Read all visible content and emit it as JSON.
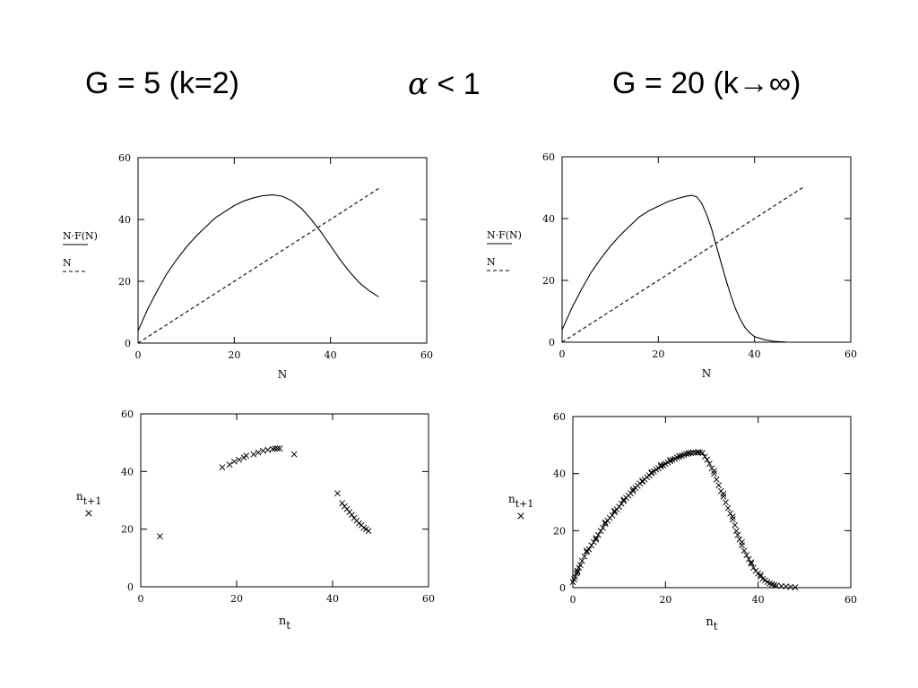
{
  "titles": {
    "left": "G = 5  (k=2)",
    "middle_symbol": "α",
    "middle_rest": " < 1",
    "right": "G = 20 (k→∞)"
  },
  "chart_data": [
    {
      "type": "line",
      "xlabel": "N",
      "ylabel_lines": [
        {
          "text": "N·F(N)",
          "style": "solid"
        },
        {
          "text": "N",
          "style": "dashed"
        }
      ],
      "xlim": [
        0,
        60
      ],
      "ylim": [
        0,
        60
      ],
      "xticks": [
        "0",
        "20",
        "40",
        "60"
      ],
      "yticks": [
        "0",
        "20",
        "40",
        "60"
      ],
      "series": [
        {
          "style": "solid",
          "x": [
            0,
            2,
            4,
            6,
            8,
            10,
            12,
            14,
            16,
            18,
            20,
            22,
            24,
            26,
            28,
            30,
            32,
            34,
            36,
            38,
            40,
            42,
            44,
            46,
            48,
            50
          ],
          "y": [
            4,
            11,
            17,
            22.5,
            27,
            31,
            34.5,
            37.5,
            40.5,
            42.5,
            44.5,
            46,
            47,
            47.7,
            48,
            47.5,
            46,
            43.5,
            40,
            36,
            31.5,
            27,
            23,
            19.5,
            17,
            15
          ]
        },
        {
          "style": "dashed",
          "x": [
            0,
            50
          ],
          "y": [
            0,
            50
          ]
        }
      ]
    },
    {
      "type": "line",
      "xlabel": "N",
      "ylabel_lines": [
        {
          "text": "N·F(N)",
          "style": "solid"
        },
        {
          "text": "N",
          "style": "dashed"
        }
      ],
      "xlim": [
        0,
        60
      ],
      "ylim": [
        0,
        60
      ],
      "xticks": [
        "0",
        "20",
        "40",
        "60"
      ],
      "yticks": [
        "0",
        "20",
        "40",
        "60"
      ],
      "series": [
        {
          "style": "solid",
          "x": [
            0,
            2,
            4,
            6,
            8,
            10,
            12,
            14,
            16,
            18,
            20,
            22,
            24,
            26,
            27,
            28,
            29,
            30,
            31,
            32,
            33,
            34,
            35,
            36,
            37,
            38,
            39,
            40,
            42,
            44,
            46,
            47
          ],
          "y": [
            4,
            11,
            17,
            22.5,
            27,
            31,
            34.5,
            37.5,
            40.5,
            42.5,
            44,
            45.5,
            46.5,
            47.3,
            47.5,
            47,
            45,
            41.5,
            37,
            31.5,
            26,
            20.5,
            15.5,
            11,
            7.5,
            4.8,
            3,
            1.8,
            0.8,
            0.3,
            0.1,
            0
          ]
        },
        {
          "style": "dashed",
          "x": [
            0,
            50
          ],
          "y": [
            0,
            50
          ]
        }
      ]
    },
    {
      "type": "scatter",
      "xlabel": "n",
      "xlabel_sub": "t",
      "ylabel": "n",
      "ylabel_sub": "t+1",
      "legend_marker": "×",
      "xlim": [
        0,
        60
      ],
      "ylim": [
        0,
        60
      ],
      "xticks": [
        "0",
        "20",
        "40",
        "60"
      ],
      "yticks": [
        "0",
        "20",
        "40",
        "60"
      ],
      "points": [
        [
          4,
          17.5
        ],
        [
          17,
          41.5
        ],
        [
          18.5,
          42.5
        ],
        [
          19.5,
          43.5
        ],
        [
          20.5,
          44.2
        ],
        [
          21.5,
          45
        ],
        [
          22,
          45.5
        ],
        [
          23.5,
          46
        ],
        [
          24.5,
          46.7
        ],
        [
          25.5,
          47.2
        ],
        [
          26.5,
          47.6
        ],
        [
          27.5,
          47.9
        ],
        [
          28,
          48
        ],
        [
          28.5,
          48
        ],
        [
          29,
          48
        ],
        [
          32,
          46
        ],
        [
          41,
          32.5
        ],
        [
          42,
          29
        ],
        [
          42.5,
          28
        ],
        [
          43,
          27
        ],
        [
          43.5,
          26
        ],
        [
          44,
          25
        ],
        [
          44.5,
          24
        ],
        [
          45,
          23
        ],
        [
          45.5,
          22
        ],
        [
          46,
          21.5
        ],
        [
          46.5,
          20.5
        ],
        [
          47,
          20
        ],
        [
          47.5,
          19.5
        ]
      ]
    },
    {
      "type": "scatter",
      "xlabel": "n",
      "xlabel_sub": "t",
      "ylabel": "n",
      "ylabel_sub": "t+1",
      "legend_marker": "×",
      "xlim": [
        0,
        60
      ],
      "ylim": [
        0,
        60
      ],
      "xticks": [
        "0",
        "20",
        "40",
        "60"
      ],
      "yticks": [
        "0",
        "20",
        "40",
        "60"
      ],
      "points": [
        [
          0,
          2
        ],
        [
          0.3,
          3
        ],
        [
          0.5,
          4
        ],
        [
          0.8,
          5
        ],
        [
          1,
          6
        ],
        [
          1.3,
          7
        ],
        [
          1.6,
          8
        ],
        [
          2,
          9.5
        ],
        [
          2.5,
          11
        ],
        [
          3,
          12.5
        ],
        [
          3.5,
          13.5
        ],
        [
          4,
          15
        ],
        [
          4.5,
          16
        ],
        [
          5,
          17.5
        ],
        [
          5.5,
          18.5
        ],
        [
          6,
          20
        ],
        [
          6.5,
          21
        ],
        [
          7,
          22.5
        ],
        [
          7.5,
          23.5
        ],
        [
          8,
          24.5
        ],
        [
          8.5,
          25.5
        ],
        [
          9,
          26.5
        ],
        [
          9.5,
          27.5
        ],
        [
          10,
          28.5
        ],
        [
          10.5,
          29.5
        ],
        [
          11,
          30.5
        ],
        [
          11.5,
          31.5
        ],
        [
          12,
          32.3
        ],
        [
          12.5,
          33.2
        ],
        [
          13,
          34
        ],
        [
          13.5,
          35
        ],
        [
          14,
          35.8
        ],
        [
          14.5,
          36.6
        ],
        [
          15,
          37.3
        ],
        [
          15.5,
          38
        ],
        [
          16,
          38.8
        ],
        [
          16.5,
          39.5
        ],
        [
          17,
          40.2
        ],
        [
          17.5,
          40.8
        ],
        [
          18,
          41.5
        ],
        [
          18.5,
          42
        ],
        [
          19,
          42.5
        ],
        [
          19.5,
          43
        ],
        [
          20,
          43.5
        ],
        [
          20.5,
          44
        ],
        [
          21,
          44.5
        ],
        [
          21.5,
          44.9
        ],
        [
          22,
          45.3
        ],
        [
          22.5,
          45.7
        ],
        [
          23,
          46
        ],
        [
          23.5,
          46.3
        ],
        [
          24,
          46.6
        ],
        [
          24.5,
          46.9
        ],
        [
          25,
          47.1
        ],
        [
          25.5,
          47.3
        ],
        [
          26,
          47.4
        ],
        [
          26.5,
          47.5
        ],
        [
          27,
          47.5
        ],
        [
          27.5,
          47.4
        ],
        [
          28,
          47.2
        ],
        [
          28.5,
          46
        ],
        [
          29,
          45
        ],
        [
          29.5,
          43.5
        ],
        [
          30,
          42
        ],
        [
          30.5,
          40
        ],
        [
          31,
          38
        ],
        [
          31.5,
          36
        ],
        [
          32,
          34
        ],
        [
          32.5,
          32
        ],
        [
          33,
          30
        ],
        [
          33.5,
          28
        ],
        [
          34,
          26
        ],
        [
          34.5,
          24
        ],
        [
          35,
          22
        ],
        [
          35.3,
          20
        ],
        [
          35.6,
          18.5
        ],
        [
          36,
          17
        ],
        [
          36.5,
          15
        ],
        [
          37,
          13
        ],
        [
          37.5,
          11.5
        ],
        [
          38,
          10
        ],
        [
          38.5,
          8.5
        ],
        [
          39,
          7
        ],
        [
          39.5,
          6
        ],
        [
          40,
          5
        ],
        [
          40.5,
          4
        ],
        [
          41,
          3.2
        ],
        [
          41.5,
          2.6
        ],
        [
          42,
          2
        ],
        [
          42.5,
          1.6
        ],
        [
          43,
          1.2
        ],
        [
          43.5,
          1
        ],
        [
          44,
          0.8
        ],
        [
          45,
          0.6
        ],
        [
          46,
          0.4
        ],
        [
          47,
          0.3
        ],
        [
          48,
          0.2
        ],
        [
          1,
          5.5
        ],
        [
          3,
          13
        ],
        [
          5,
          17
        ],
        [
          7,
          23
        ],
        [
          9,
          27
        ],
        [
          11,
          31
        ],
        [
          13,
          34.5
        ],
        [
          15,
          37.5
        ],
        [
          17,
          40.5
        ],
        [
          19,
          43
        ],
        [
          21,
          44.8
        ],
        [
          23,
          46.2
        ],
        [
          25,
          47.2
        ],
        [
          27,
          47.6
        ],
        [
          30.5,
          41
        ],
        [
          32.5,
          33
        ],
        [
          34.5,
          25
        ],
        [
          36.5,
          16
        ],
        [
          38.5,
          9
        ],
        [
          40.5,
          4.5
        ]
      ]
    }
  ]
}
